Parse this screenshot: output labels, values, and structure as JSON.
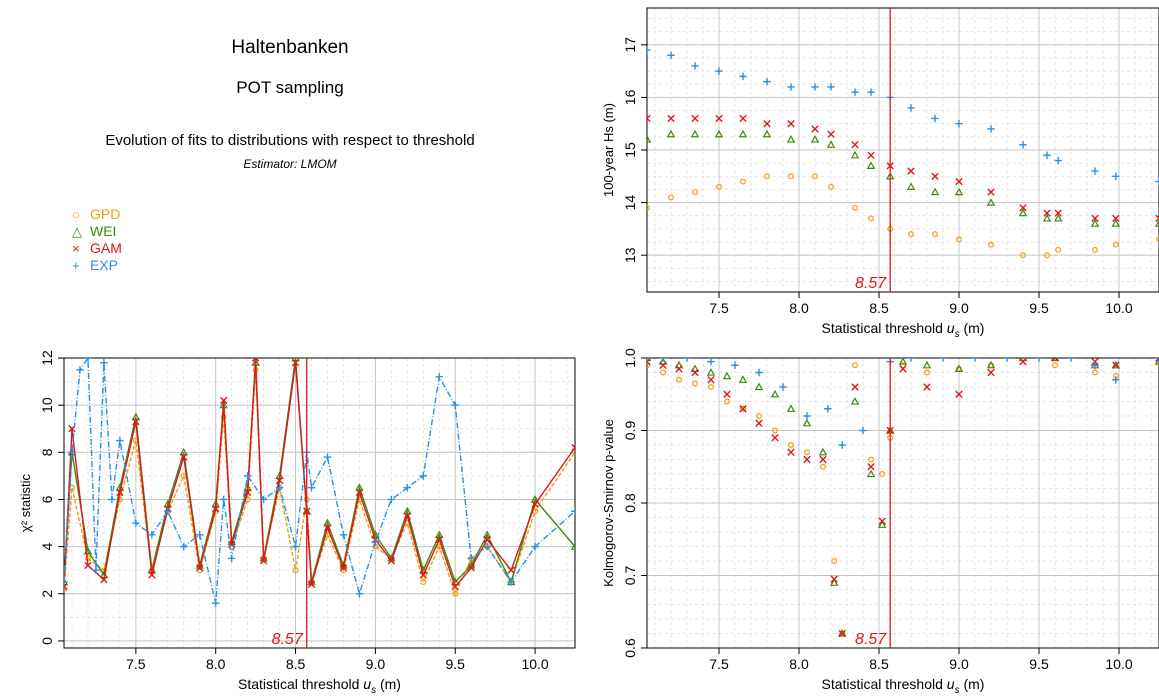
{
  "header": {
    "title": "Haltenbanken",
    "subtitle": "POT sampling",
    "description": "Evolution of fits to distributions with respect to threshold",
    "estimator": "Estimator: LMOM"
  },
  "legend": [
    {
      "label": "GPD",
      "symbol": "○",
      "color": "#f39c12"
    },
    {
      "label": "WEI",
      "symbol": "△",
      "color": "#3c8a0c"
    },
    {
      "label": "GAM",
      "symbol": "×",
      "color": "#e0161a"
    },
    {
      "label": "EXP",
      "symbol": "+",
      "color": "#2b8fe6"
    }
  ],
  "chart_data": [
    {
      "id": "return-level",
      "type": "scatter",
      "ylabel": "100-year Hs (m)",
      "xlabel": "Statistical threshold u_s (m)",
      "xlim": [
        7.05,
        10.25
      ],
      "ylim": [
        12.3,
        17.7
      ],
      "xticks": [
        7.5,
        8.0,
        8.5,
        9.0,
        9.5,
        10.0
      ],
      "yticks": [
        13,
        14,
        15,
        16,
        17
      ],
      "vline": 8.57,
      "vline_label": "8.57",
      "grid": true,
      "series": [
        {
          "name": "GPD",
          "color": "#f39c12",
          "marker": "circle",
          "x": [
            7.05,
            7.2,
            7.35,
            7.5,
            7.65,
            7.8,
            7.95,
            8.1,
            8.2,
            8.35,
            8.45,
            8.57,
            8.7,
            8.85,
            9.0,
            9.2,
            9.4,
            9.55,
            9.62,
            9.85,
            9.98,
            10.25
          ],
          "y": [
            13.9,
            14.1,
            14.2,
            14.3,
            14.4,
            14.5,
            14.5,
            14.5,
            14.3,
            13.9,
            13.7,
            13.5,
            13.4,
            13.4,
            13.3,
            13.2,
            13.0,
            13.0,
            13.1,
            13.1,
            13.2,
            13.3
          ]
        },
        {
          "name": "WEI",
          "color": "#3c8a0c",
          "marker": "triangle",
          "x": [
            7.05,
            7.2,
            7.35,
            7.5,
            7.65,
            7.8,
            7.95,
            8.1,
            8.2,
            8.35,
            8.45,
            8.57,
            8.7,
            8.85,
            9.0,
            9.2,
            9.4,
            9.55,
            9.62,
            9.85,
            9.98,
            10.25
          ],
          "y": [
            15.2,
            15.3,
            15.3,
            15.3,
            15.3,
            15.3,
            15.2,
            15.2,
            15.1,
            14.9,
            14.7,
            14.5,
            14.3,
            14.2,
            14.2,
            14.0,
            13.8,
            13.7,
            13.7,
            13.6,
            13.6,
            13.6
          ]
        },
        {
          "name": "GAM",
          "color": "#e0161a",
          "marker": "cross",
          "x": [
            7.05,
            7.2,
            7.35,
            7.5,
            7.65,
            7.8,
            7.95,
            8.1,
            8.2,
            8.35,
            8.45,
            8.57,
            8.7,
            8.85,
            9.0,
            9.2,
            9.4,
            9.55,
            9.62,
            9.85,
            9.98,
            10.25
          ],
          "y": [
            15.6,
            15.6,
            15.6,
            15.6,
            15.6,
            15.5,
            15.5,
            15.4,
            15.3,
            15.1,
            14.9,
            14.7,
            14.6,
            14.5,
            14.4,
            14.2,
            13.9,
            13.8,
            13.8,
            13.7,
            13.7,
            13.7
          ]
        },
        {
          "name": "EXP",
          "color": "#2b8fe6",
          "marker": "plus",
          "x": [
            7.05,
            7.2,
            7.35,
            7.5,
            7.65,
            7.8,
            7.95,
            8.1,
            8.2,
            8.35,
            8.45,
            8.57,
            8.7,
            8.85,
            9.0,
            9.2,
            9.4,
            9.55,
            9.62,
            9.85,
            9.98,
            10.25
          ],
          "y": [
            16.9,
            16.8,
            16.6,
            16.5,
            16.4,
            16.3,
            16.2,
            16.2,
            16.2,
            16.1,
            16.1,
            16.0,
            15.8,
            15.6,
            15.5,
            15.4,
            15.1,
            14.9,
            14.8,
            14.6,
            14.5,
            14.4
          ]
        }
      ]
    },
    {
      "id": "chi-square",
      "type": "line",
      "ylabel": "χ² statistic",
      "xlabel": "Statistical threshold u_s (m)",
      "xlim": [
        7.05,
        10.25
      ],
      "ylim": [
        -0.3,
        12.0
      ],
      "xticks": [
        7.5,
        8.0,
        8.5,
        9.0,
        9.5,
        10.0
      ],
      "yticks": [
        0,
        2,
        4,
        6,
        8,
        10,
        12
      ],
      "vline": 8.57,
      "vline_label": "8.57",
      "grid": true,
      "series": [
        {
          "name": "GPD",
          "color": "#f39c12",
          "marker": "circle",
          "x": [
            7.05,
            7.1,
            7.2,
            7.3,
            7.4,
            7.5,
            7.6,
            7.7,
            7.8,
            7.9,
            8.0,
            8.05,
            8.1,
            8.2,
            8.25,
            8.3,
            8.4,
            8.5,
            8.57,
            8.6,
            8.7,
            8.8,
            8.9,
            9.0,
            9.1,
            9.2,
            9.3,
            9.4,
            9.5,
            9.6,
            9.7,
            9.85,
            10.0,
            10.25
          ],
          "y": [
            2.2,
            6.5,
            3.5,
            3.0,
            6.0,
            8.5,
            3.0,
            5.5,
            7.0,
            3.0,
            5.5,
            9.5,
            4.0,
            6.0,
            11.5,
            3.5,
            6.5,
            3.0,
            6.0,
            2.5,
            4.5,
            3.0,
            6.0,
            4.0,
            3.5,
            5.0,
            2.5,
            4.0,
            2.0,
            3.5,
            4.0,
            2.5,
            5.5,
            8.0
          ]
        },
        {
          "name": "WEI",
          "color": "#3c8a0c",
          "marker": "triangle",
          "x": [
            7.05,
            7.1,
            7.2,
            7.3,
            7.4,
            7.5,
            7.6,
            7.7,
            7.8,
            7.9,
            8.0,
            8.05,
            8.1,
            8.2,
            8.25,
            8.3,
            8.4,
            8.5,
            8.57,
            8.6,
            8.7,
            8.8,
            8.9,
            9.0,
            9.1,
            9.2,
            9.3,
            9.4,
            9.5,
            9.6,
            9.7,
            9.85,
            10.0,
            10.25
          ],
          "y": [
            2.5,
            8.0,
            3.8,
            2.8,
            6.5,
            9.5,
            3.0,
            5.8,
            8.0,
            3.2,
            5.8,
            10.0,
            4.2,
            6.5,
            11.8,
            3.5,
            7.0,
            12.0,
            5.5,
            2.5,
            5.0,
            3.2,
            6.5,
            4.5,
            3.5,
            5.5,
            3.0,
            4.5,
            2.5,
            3.2,
            4.5,
            2.5,
            6.0,
            4.0
          ]
        },
        {
          "name": "GAM",
          "color": "#e0161a",
          "marker": "cross",
          "x": [
            7.05,
            7.1,
            7.2,
            7.3,
            7.4,
            7.5,
            7.6,
            7.7,
            7.8,
            7.9,
            8.0,
            8.05,
            8.1,
            8.2,
            8.25,
            8.3,
            8.4,
            8.5,
            8.57,
            8.6,
            8.7,
            8.8,
            8.9,
            9.0,
            9.1,
            9.2,
            9.3,
            9.4,
            9.5,
            9.6,
            9.7,
            9.85,
            10.0,
            10.25
          ],
          "y": [
            2.3,
            9.0,
            3.2,
            2.6,
            6.3,
            9.3,
            2.8,
            5.6,
            7.8,
            3.1,
            5.6,
            10.2,
            4.1,
            6.3,
            12.0,
            3.4,
            6.8,
            11.8,
            5.5,
            2.4,
            4.8,
            3.1,
            6.3,
            4.3,
            3.4,
            5.3,
            2.8,
            4.3,
            2.3,
            3.1,
            4.3,
            3.0,
            5.8,
            8.2
          ]
        },
        {
          "name": "EXP",
          "color": "#2b8fe6",
          "marker": "plus",
          "x": [
            7.05,
            7.1,
            7.15,
            7.2,
            7.25,
            7.3,
            7.35,
            7.4,
            7.5,
            7.6,
            7.7,
            7.8,
            7.9,
            8.0,
            8.05,
            8.1,
            8.2,
            8.3,
            8.4,
            8.5,
            8.57,
            8.6,
            8.7,
            8.8,
            8.9,
            9.0,
            9.1,
            9.2,
            9.3,
            9.4,
            9.5,
            9.6,
            9.7,
            9.85,
            10.0,
            10.25
          ],
          "y": [
            2.5,
            8.0,
            11.5,
            12.0,
            3.0,
            11.8,
            6.0,
            8.5,
            5.0,
            4.5,
            5.5,
            4.0,
            4.5,
            1.6,
            6.0,
            3.5,
            7.0,
            6.0,
            6.5,
            4.0,
            8.0,
            6.5,
            7.8,
            4.5,
            2.0,
            4.2,
            6.0,
            6.5,
            7.0,
            11.2,
            10.0,
            3.5,
            4.0,
            2.5,
            4.0,
            5.5
          ]
        }
      ]
    },
    {
      "id": "ks-pvalue",
      "type": "scatter",
      "ylabel": "Kolmogorov-Smirnov p-value",
      "xlabel": "Statistical threshold u_s (m)",
      "xlim": [
        7.05,
        10.25
      ],
      "ylim": [
        0.6,
        1.0
      ],
      "xticks": [
        7.5,
        8.0,
        8.5,
        9.0,
        9.5,
        10.0
      ],
      "yticks": [
        0.6,
        0.7,
        0.8,
        0.9,
        1.0
      ],
      "vline": 8.57,
      "vline_label": "8.57",
      "grid": true,
      "series": [
        {
          "name": "GPD",
          "color": "#f39c12",
          "marker": "circle",
          "x": [
            7.05,
            7.15,
            7.25,
            7.35,
            7.45,
            7.55,
            7.65,
            7.75,
            7.85,
            7.95,
            8.05,
            8.15,
            8.22,
            8.27,
            8.35,
            8.45,
            8.52,
            8.57,
            8.65,
            8.8,
            9.0,
            9.2,
            9.4,
            9.6,
            9.85,
            9.98,
            10.25
          ],
          "y": [
            0.99,
            0.98,
            0.97,
            0.965,
            0.96,
            0.94,
            0.93,
            0.92,
            0.9,
            0.88,
            0.87,
            0.85,
            0.72,
            0.62,
            0.99,
            0.86,
            0.84,
            0.89,
            0.99,
            0.98,
            0.985,
            0.99,
            1.0,
            0.99,
            0.98,
            0.975,
            0.995
          ]
        },
        {
          "name": "WEI",
          "color": "#3c8a0c",
          "marker": "triangle",
          "x": [
            7.05,
            7.15,
            7.25,
            7.35,
            7.45,
            7.55,
            7.65,
            7.75,
            7.85,
            7.95,
            8.05,
            8.15,
            8.22,
            8.27,
            8.35,
            8.45,
            8.52,
            8.57,
            8.65,
            8.8,
            9.0,
            9.2,
            9.4,
            9.6,
            9.85,
            9.98,
            10.25
          ],
          "y": [
            1.0,
            0.995,
            0.99,
            0.985,
            0.98,
            0.975,
            0.97,
            0.96,
            0.95,
            0.93,
            0.91,
            0.87,
            0.69,
            0.62,
            0.94,
            0.84,
            0.77,
            0.9,
            0.995,
            0.99,
            0.985,
            0.99,
            1.0,
            1.0,
            0.99,
            0.99,
            0.995
          ]
        },
        {
          "name": "GAM",
          "color": "#e0161a",
          "marker": "cross",
          "x": [
            7.05,
            7.15,
            7.25,
            7.35,
            7.45,
            7.55,
            7.65,
            7.75,
            7.85,
            7.95,
            8.05,
            8.15,
            8.22,
            8.27,
            8.35,
            8.45,
            8.52,
            8.57,
            8.65,
            8.8,
            9.0,
            9.2,
            9.4,
            9.6,
            9.85,
            9.98,
            10.25
          ],
          "y": [
            0.995,
            0.99,
            0.985,
            0.98,
            0.97,
            0.95,
            0.93,
            0.91,
            0.89,
            0.87,
            0.86,
            0.86,
            0.695,
            0.62,
            0.96,
            0.85,
            0.775,
            0.9,
            0.985,
            0.96,
            0.95,
            0.98,
            0.995,
            1.0,
            0.995,
            0.99,
            1.0
          ]
        },
        {
          "name": "EXP",
          "color": "#2b8fe6",
          "marker": "plus",
          "x": [
            7.05,
            7.15,
            7.3,
            7.45,
            7.6,
            7.75,
            7.9,
            8.05,
            8.18,
            8.27,
            8.4,
            8.57,
            8.7,
            8.9,
            9.1,
            9.3,
            9.5,
            9.7,
            9.85,
            9.98,
            10.25
          ],
          "y": [
            1.0,
            1.0,
            1.0,
            0.995,
            0.99,
            0.98,
            0.96,
            0.92,
            0.93,
            0.88,
            0.9,
            0.995,
            1.0,
            1.0,
            1.0,
            1.0,
            1.0,
            1.0,
            0.99,
            0.97,
            1.0
          ]
        }
      ]
    }
  ]
}
